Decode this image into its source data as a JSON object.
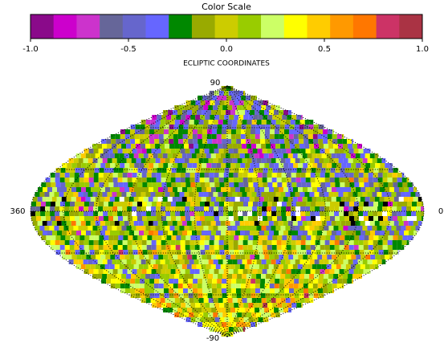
{
  "color_scale": {
    "title": "Color Scale",
    "range": [
      -1,
      1
    ],
    "ticks": [
      {
        "value": -1,
        "label": "-1.0"
      },
      {
        "value": -0.5,
        "label": "-0.5"
      },
      {
        "value": 0,
        "label": "0.0"
      },
      {
        "value": 0.5,
        "label": "0.5"
      },
      {
        "value": 1,
        "label": "1.0"
      }
    ],
    "colors": [
      "#8a0a8a",
      "#cc00cc",
      "#cc33cc",
      "#666699",
      "#6666cc",
      "#6666ff",
      "#008800",
      "#99aa00",
      "#cccc00",
      "#99cc00",
      "#ccff66",
      "#ffff00",
      "#ffcc00",
      "#ff9900",
      "#ff7700",
      "#cc3366",
      "#aa3344"
    ]
  },
  "map": {
    "title": "ECLIPTIC COORDINATES",
    "labels": {
      "top": "90",
      "left": "360",
      "right": "0",
      "bottom": "-90"
    }
  }
}
